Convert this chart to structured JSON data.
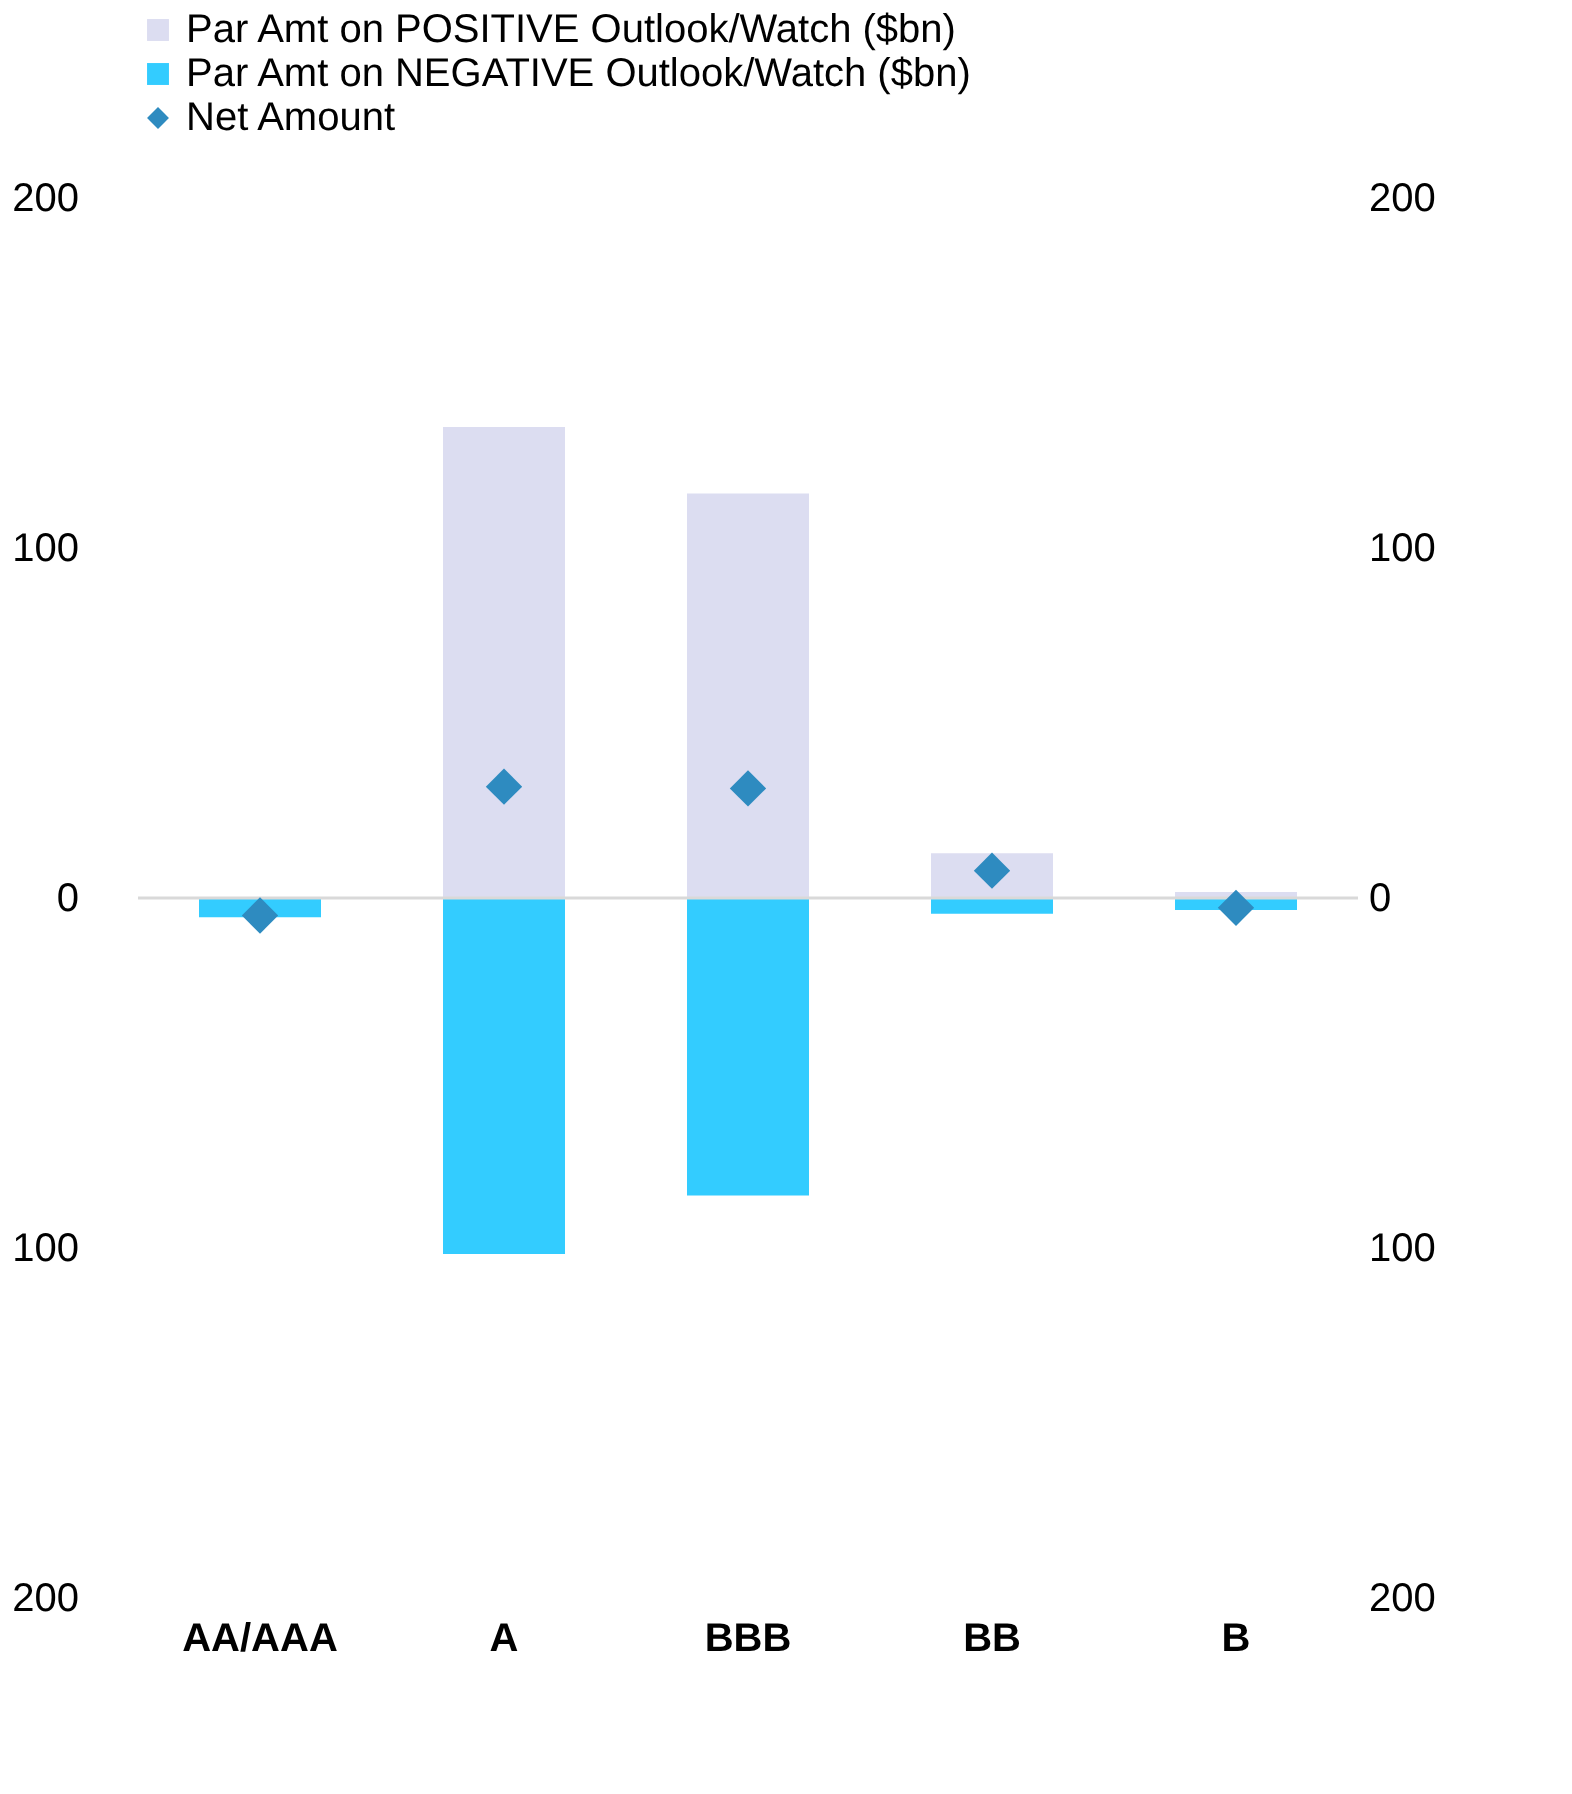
{
  "chart_data": {
    "type": "bar",
    "stacked": true,
    "categories": [
      "AA/AAA",
      "A",
      "BBB",
      "BB",
      "B"
    ],
    "series": [
      {
        "name": "Par Amt on POSITIVE Outlook/Watch ($bn)",
        "color": "#dcddf1",
        "values": [
          null,
          134.6,
          115.6,
          12.8,
          1.7
        ]
      },
      {
        "name": "Par Amt on NEGATIVE Outlook/Watch ($bn)",
        "color": "#33ccff",
        "values": [
          -5.5,
          -101.7,
          -85,
          -4.5,
          -3.4
        ]
      },
      {
        "name": "Net Amount",
        "type": "scatter",
        "marker": "diamond",
        "color": "#2e8bc0",
        "values": [
          -5,
          31.8,
          31.3,
          7.8,
          -2.8
        ]
      }
    ],
    "ylim": [
      -200,
      200
    ],
    "yticks": [
      {
        "value": -200,
        "label": "200"
      },
      {
        "value": -100,
        "label": "100"
      },
      0,
      100,
      200
    ],
    "y2lim": [
      -200,
      200
    ],
    "y2ticks": [
      {
        "value": -200,
        "label": "200"
      },
      {
        "value": -100,
        "label": "100"
      },
      0,
      100,
      200
    ],
    "ref_lines": [
      {
        "axis": "y",
        "value": 0,
        "color": "#d9d9d9"
      }
    ],
    "grid": false,
    "legend": "top"
  }
}
